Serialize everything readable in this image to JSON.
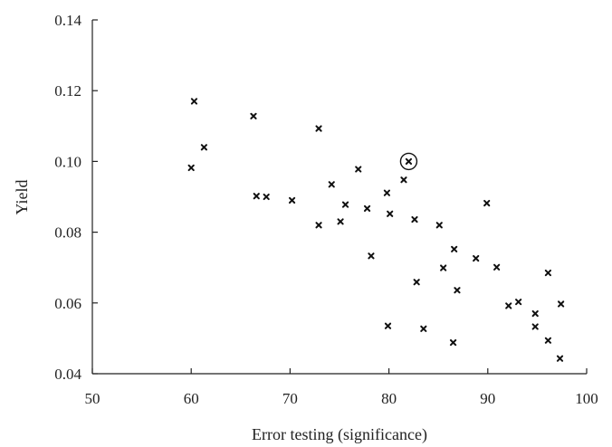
{
  "chart_data": {
    "type": "scatter",
    "title": "",
    "xlabel": "Error testing (significance)",
    "ylabel": "Yield",
    "xlim": [
      50,
      100
    ],
    "ylim": [
      0.04,
      0.14
    ],
    "x_ticks": [
      50,
      60,
      70,
      80,
      90,
      100
    ],
    "x_tick_labels": [
      "50",
      "60",
      "70",
      "80",
      "90",
      "100"
    ],
    "y_ticks": [
      0.04,
      0.06,
      0.08,
      0.1,
      0.12,
      0.14
    ],
    "y_tick_labels": [
      "0.04",
      "0.06",
      "0.08",
      "0.10",
      "0.12",
      "0.14"
    ],
    "grid": false,
    "marker": "x",
    "series": [
      {
        "points": [
          [
            60.0,
            0.0982
          ],
          [
            60.3,
            0.117
          ],
          [
            61.3,
            0.104
          ],
          [
            66.3,
            0.1128
          ],
          [
            66.6,
            0.0902
          ],
          [
            67.6,
            0.09
          ],
          [
            70.2,
            0.089
          ],
          [
            72.9,
            0.1093
          ],
          [
            72.9,
            0.082
          ],
          [
            74.2,
            0.0935
          ],
          [
            75.1,
            0.083
          ],
          [
            75.6,
            0.0878
          ],
          [
            76.9,
            0.0978
          ],
          [
            77.8,
            0.0867
          ],
          [
            78.2,
            0.0733
          ],
          [
            79.8,
            0.0911
          ],
          [
            80.1,
            0.0852
          ],
          [
            79.9,
            0.0535
          ],
          [
            81.5,
            0.0948
          ],
          [
            82.0,
            0.1
          ],
          [
            82.6,
            0.0836
          ],
          [
            82.8,
            0.0659
          ],
          [
            83.5,
            0.0527
          ],
          [
            85.1,
            0.082
          ],
          [
            85.5,
            0.0699
          ],
          [
            86.5,
            0.0488
          ],
          [
            86.6,
            0.0752
          ],
          [
            86.9,
            0.0636
          ],
          [
            88.8,
            0.0726
          ],
          [
            89.9,
            0.0882
          ],
          [
            90.9,
            0.0701
          ],
          [
            92.1,
            0.0592
          ],
          [
            93.1,
            0.0603
          ],
          [
            94.8,
            0.057
          ],
          [
            94.8,
            0.0533
          ],
          [
            96.1,
            0.0685
          ],
          [
            96.1,
            0.0494
          ],
          [
            97.4,
            0.0597
          ],
          [
            97.3,
            0.0443
          ]
        ]
      }
    ],
    "highlighted_point": [
      82.0,
      0.1
    ]
  }
}
